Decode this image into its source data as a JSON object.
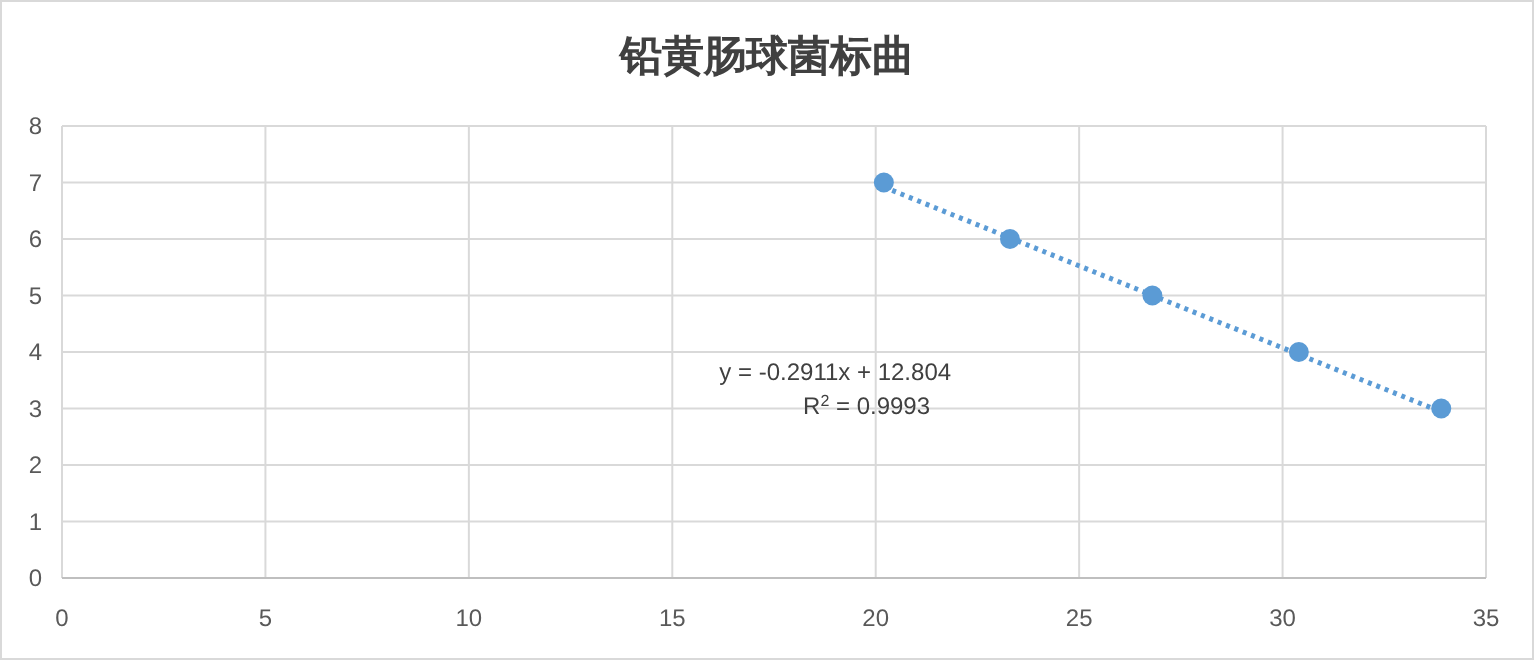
{
  "chart_data": {
    "type": "scatter",
    "title": "铅黄肠球菌标曲",
    "xlim": [
      0,
      35
    ],
    "xticks": [
      0,
      5,
      10,
      15,
      20,
      25,
      30,
      35
    ],
    "ylim": [
      0,
      8
    ],
    "yticks": [
      0,
      1,
      2,
      3,
      4,
      5,
      6,
      7,
      8
    ],
    "grid": true,
    "marker": "circle",
    "series": [
      {
        "color": "#5b9bd5",
        "x": [
          20.2,
          23.3,
          26.8,
          30.4,
          33.9
        ],
        "values": [
          7,
          6,
          5,
          4,
          3
        ]
      },
      {
        "type": "line",
        "color": "#5b9bd5",
        "line_style": "dotted",
        "marker": "none",
        "x": [
          20.2,
          33.9
        ],
        "values": [
          6.92,
          2.94
        ]
      }
    ],
    "annotations": [
      "y = -0.2911x + 12.804",
      "R$^{2}$ = 0.9993"
    ]
  }
}
